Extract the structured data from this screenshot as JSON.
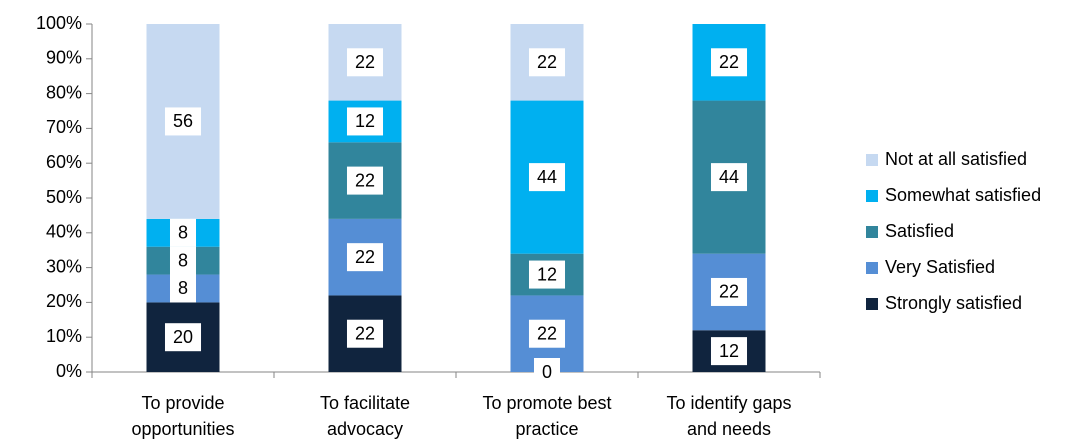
{
  "chart_data": {
    "type": "stacked_bar_100",
    "categories": [
      [
        "To provide",
        "opportunities"
      ],
      [
        "To facilitate",
        "advocacy"
      ],
      [
        "To promote best",
        "practice"
      ],
      [
        "To identify gaps",
        "and needs"
      ]
    ],
    "series": [
      {
        "name": "Strongly satisfied",
        "color": "#10243e",
        "values": [
          20,
          22,
          0,
          12
        ]
      },
      {
        "name": "Very Satisfied",
        "color": "#558ed5",
        "values": [
          8,
          22,
          22,
          22
        ]
      },
      {
        "name": "Satisfied",
        "color": "#31859c",
        "values": [
          8,
          22,
          12,
          44
        ]
      },
      {
        "name": "Somewhat satisfied",
        "color": "#00b0f0",
        "values": [
          8,
          12,
          44,
          22
        ]
      },
      {
        "name": "Not at all satisfied",
        "color": "#c6d9f1",
        "values": [
          56,
          22,
          22,
          0
        ],
        "value_labels": [
          "56",
          "22",
          "22",
          null
        ]
      }
    ],
    "ylim": [
      0,
      100
    ],
    "yticks": [
      {
        "value": 0,
        "label": "0%"
      },
      {
        "value": 10,
        "label": "10%"
      },
      {
        "value": 20,
        "label": "20%"
      },
      {
        "value": 30,
        "label": "30%"
      },
      {
        "value": 40,
        "label": "40%"
      },
      {
        "value": 50,
        "label": "50%"
      },
      {
        "value": 60,
        "label": "60%"
      },
      {
        "value": 70,
        "label": "70%"
      },
      {
        "value": 80,
        "label": "80%"
      },
      {
        "value": 90,
        "label": "90%"
      },
      {
        "value": 100,
        "label": "100%"
      }
    ],
    "grid": false,
    "legend": "right"
  }
}
